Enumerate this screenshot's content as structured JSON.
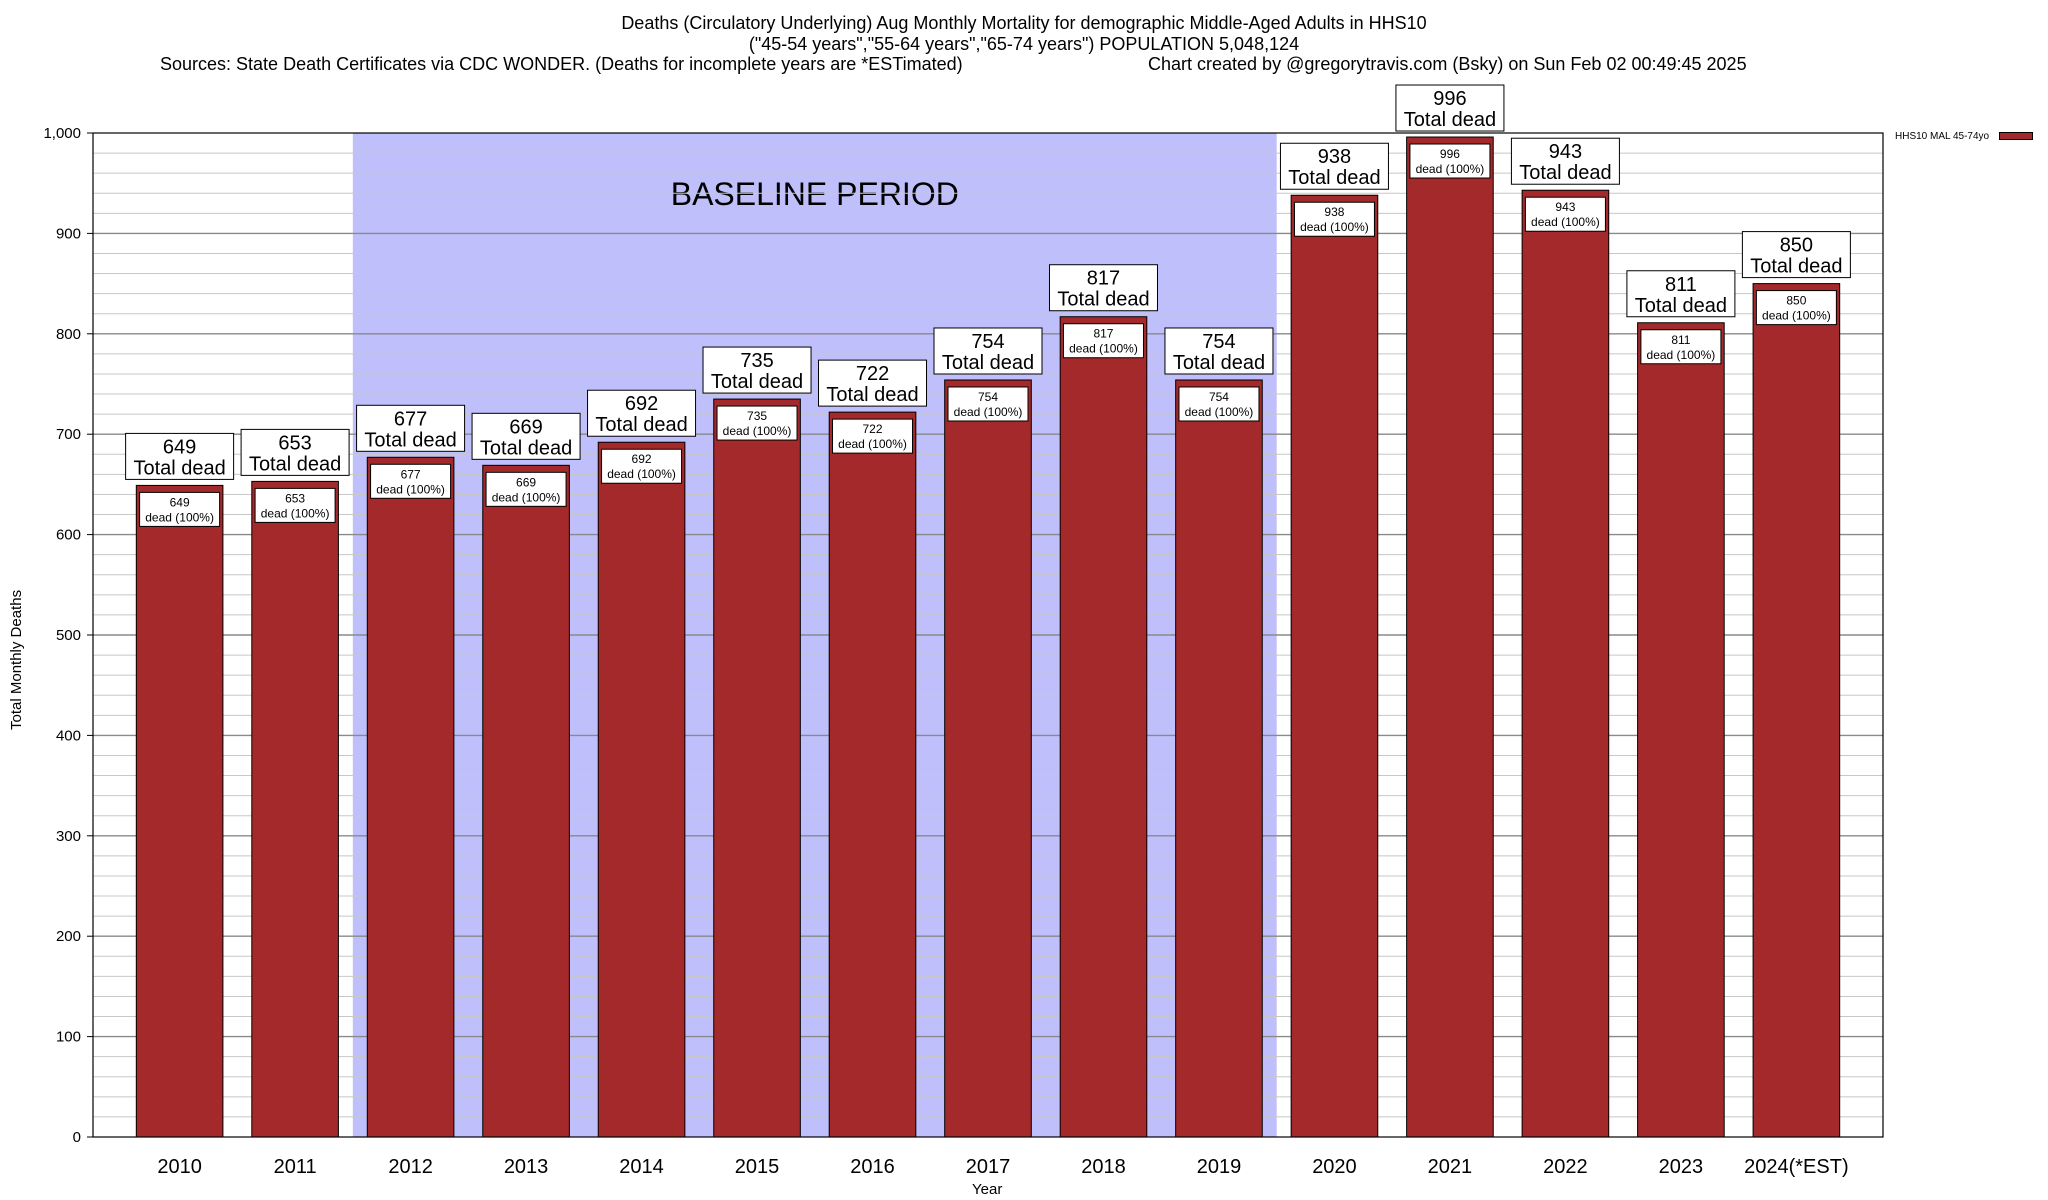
{
  "title_lines": [
    "Deaths (Circulatory Underlying) Aug Monthly Mortality for demographic Middle-Aged Adults in HHS10",
    "(\"45-54 years\",\"55-64 years\",\"65-74 years\") POPULATION 5,048,124"
  ],
  "sources_text": "Sources: State Death Certificates via CDC WONDER. (Deaths for incomplete years are *ESTimated)",
  "credit_text": "Chart created by @gregorytravis.com (Bsky) on Sun Feb 02 00:49:45 2025",
  "legend_label": "HHS10 MAL 45-74yo",
  "baseline_label": "BASELINE PERIOD",
  "colors": {
    "bar": "#a3292b",
    "baseline": "#bfbffb",
    "grid": "#c8c8c8"
  },
  "chart_data": {
    "type": "bar",
    "title": "Deaths (Circulatory Underlying) Aug Monthly Mortality for demographic Middle-Aged Adults in HHS10",
    "xlabel": "Year",
    "ylabel": "Total Monthly Deaths",
    "ylim": [
      0,
      1000
    ],
    "yticks": [
      0,
      100,
      200,
      300,
      400,
      500,
      600,
      700,
      800,
      900,
      1000
    ],
    "ytick_labels": [
      "0",
      "100",
      "200",
      "300",
      "400",
      "500",
      "600",
      "700",
      "800",
      "900",
      "1,000"
    ],
    "categories": [
      "2010",
      "2011",
      "2012",
      "2013",
      "2014",
      "2015",
      "2016",
      "2017",
      "2018",
      "2019",
      "2020",
      "2021",
      "2022",
      "2023",
      "2024(*EST)"
    ],
    "series": [
      {
        "name": "HHS10 MAL 45-74yo",
        "values": [
          649,
          653,
          677,
          669,
          692,
          735,
          722,
          754,
          817,
          754,
          938,
          996,
          943,
          811,
          850
        ]
      }
    ],
    "top_label_suffix": "Total dead",
    "inner_label_suffix": "dead (100%)",
    "baseline_period": [
      "2012",
      "2019"
    ],
    "grid": true,
    "legend_position": "top-right"
  }
}
